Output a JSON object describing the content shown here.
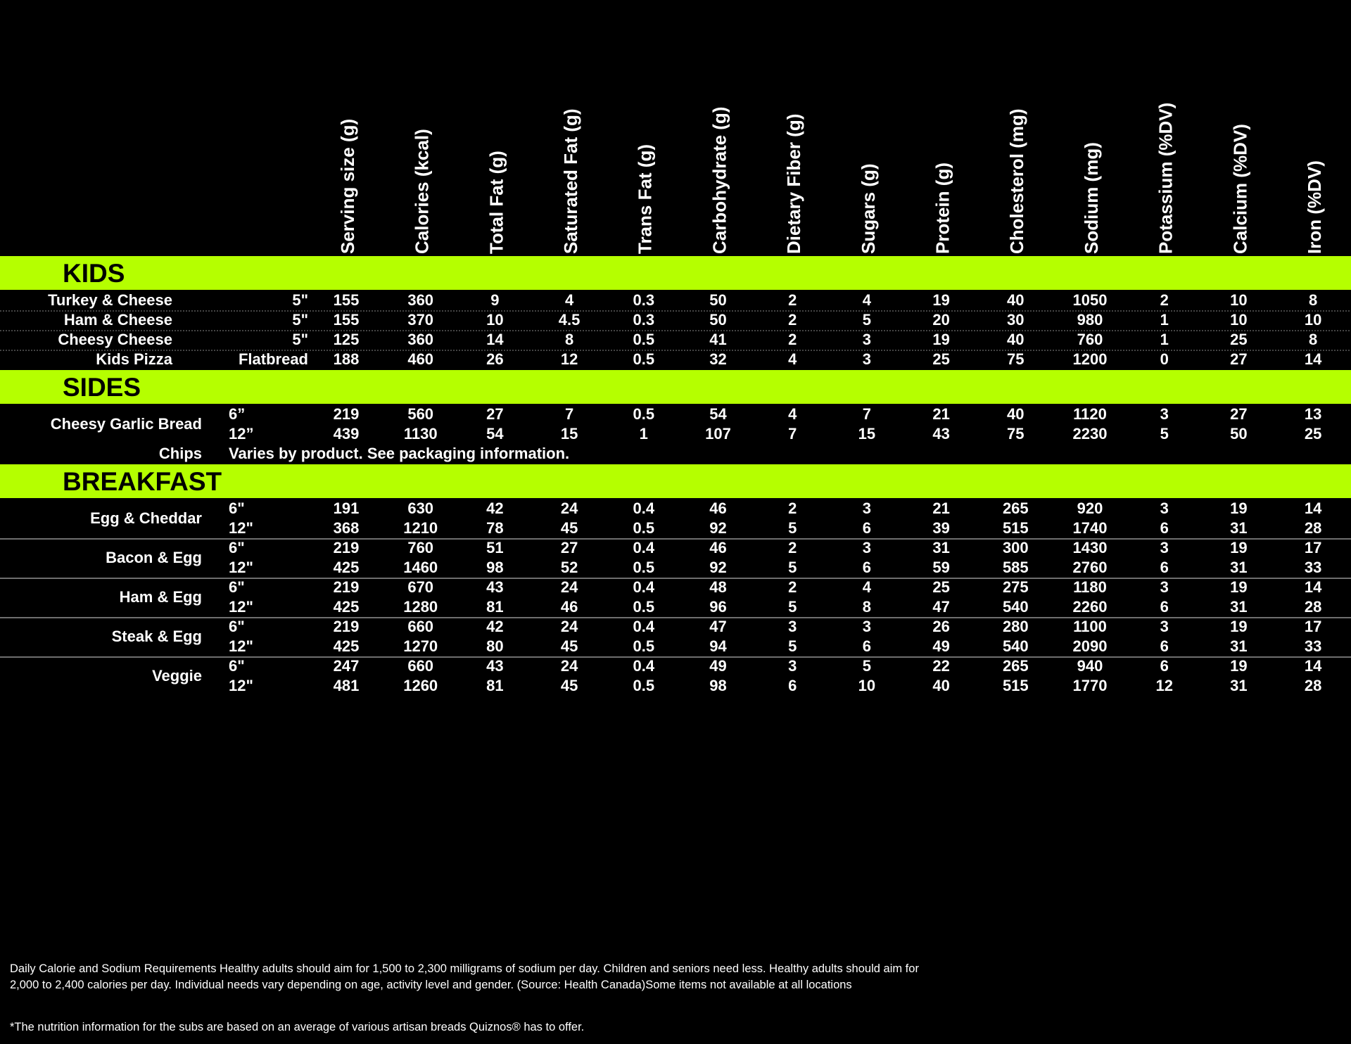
{
  "columns": [
    "Serving size (g)",
    "Calories (kcal)",
    "Total Fat (g)",
    "Saturated Fat (g)",
    "Trans Fat (g)",
    "Carbohydrate (g)",
    "Dietary Fiber (g)",
    "Sugars (g)",
    "Protein (g)",
    "Cholesterol (mg)",
    "Sodium (mg)",
    "Potassium (%DV)",
    "Calcium (%DV)",
    "Iron (%DV)"
  ],
  "sections": [
    {
      "title": "KIDS",
      "items": [
        {
          "name": "Turkey & Cheese",
          "rows": [
            {
              "size": "5\"",
              "values": [
                155,
                360,
                9,
                4,
                0.3,
                50,
                2,
                4,
                19,
                40,
                1050,
                2,
                10,
                8
              ]
            }
          ]
        },
        {
          "name": "Ham & Cheese",
          "rows": [
            {
              "size": "5\"",
              "values": [
                155,
                370,
                10,
                4.5,
                0.3,
                50,
                2,
                5,
                20,
                30,
                980,
                1,
                10,
                10
              ]
            }
          ]
        },
        {
          "name": "Cheesy Cheese",
          "rows": [
            {
              "size": "5\"",
              "values": [
                125,
                360,
                14,
                8,
                0.5,
                41,
                2,
                3,
                19,
                40,
                760,
                1,
                25,
                8
              ]
            }
          ]
        },
        {
          "name": "Kids Pizza",
          "rows": [
            {
              "size": "Flatbread",
              "values": [
                188,
                460,
                26,
                12,
                0.5,
                32,
                4,
                3,
                25,
                75,
                1200,
                0,
                27,
                14
              ]
            }
          ]
        }
      ]
    },
    {
      "title": "SIDES",
      "items": [
        {
          "name": "Cheesy Garlic Bread",
          "rows": [
            {
              "size": "6”",
              "values": [
                219,
                560,
                27,
                7,
                0.5,
                54,
                4,
                7,
                21,
                40,
                1120,
                3,
                27,
                13
              ]
            },
            {
              "size": "12”",
              "values": [
                439,
                1130,
                54,
                15,
                1,
                107,
                7,
                15,
                43,
                75,
                2230,
                5,
                50,
                25
              ]
            }
          ]
        },
        {
          "name": "Chips",
          "note": "Varies by product. See packaging information."
        }
      ]
    },
    {
      "title": "BREAKFAST",
      "items": [
        {
          "name": "Egg & Cheddar",
          "rows": [
            {
              "size": "6\"",
              "values": [
                191,
                630,
                42,
                24,
                0.4,
                46,
                2,
                3,
                21,
                265,
                920,
                3,
                19,
                14
              ]
            },
            {
              "size": "12\"",
              "values": [
                368,
                1210,
                78,
                45,
                0.5,
                92,
                5,
                6,
                39,
                515,
                1740,
                6,
                31,
                28
              ]
            }
          ]
        },
        {
          "name": "Bacon & Egg",
          "rows": [
            {
              "size": "6\"",
              "values": [
                219,
                760,
                51,
                27,
                0.4,
                46,
                2,
                3,
                31,
                300,
                1430,
                3,
                19,
                17
              ]
            },
            {
              "size": "12\"",
              "values": [
                425,
                1460,
                98,
                52,
                0.5,
                92,
                5,
                6,
                59,
                585,
                2760,
                6,
                31,
                33
              ]
            }
          ]
        },
        {
          "name": "Ham & Egg",
          "rows": [
            {
              "size": "6\"",
              "values": [
                219,
                670,
                43,
                24,
                0.4,
                48,
                2,
                4,
                25,
                275,
                1180,
                3,
                19,
                14
              ]
            },
            {
              "size": "12\"",
              "values": [
                425,
                1280,
                81,
                46,
                0.5,
                96,
                5,
                8,
                47,
                540,
                2260,
                6,
                31,
                28
              ]
            }
          ]
        },
        {
          "name": "Steak & Egg",
          "rows": [
            {
              "size": "6\"",
              "values": [
                219,
                660,
                42,
                24,
                0.4,
                47,
                3,
                3,
                26,
                280,
                1100,
                3,
                19,
                17
              ]
            },
            {
              "size": "12\"",
              "values": [
                425,
                1270,
                80,
                45,
                0.5,
                94,
                5,
                6,
                49,
                540,
                2090,
                6,
                31,
                33
              ]
            }
          ]
        },
        {
          "name": "Veggie",
          "rows": [
            {
              "size": "6\"",
              "values": [
                247,
                660,
                43,
                24,
                0.4,
                49,
                3,
                5,
                22,
                265,
                940,
                6,
                19,
                14
              ]
            },
            {
              "size": "12\"",
              "values": [
                481,
                1260,
                81,
                45,
                0.5,
                98,
                6,
                10,
                40,
                515,
                1770,
                12,
                31,
                28
              ]
            }
          ]
        }
      ]
    }
  ],
  "footnotes": [
    "Daily Calorie and Sodium Requirements Healthy adults should aim for 1,500 to 2,300 milligrams of sodium per day. Children and seniors need less. Healthy adults should aim for 2,000 to 2,400 calories per day. Individual needs vary depending on age, activity level and gender. (Source: Health Canada)Some items not available at all locations",
    "*The nutrition information for the subs are based on an average of various artisan breads Quiznos® has to offer."
  ]
}
